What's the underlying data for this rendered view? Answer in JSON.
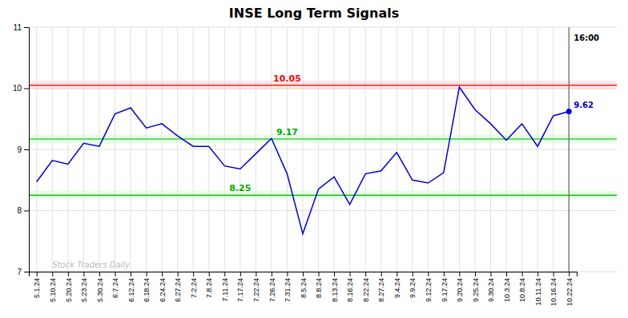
{
  "chart_data": {
    "type": "line",
    "title": "INSE Long Term Signals",
    "categories": [
      "5.1.24",
      "5.10.24",
      "5.20.24",
      "5.23.24",
      "5.30.24",
      "6.7.24",
      "6.12.24",
      "6.18.24",
      "6.24.24",
      "6.27.24",
      "7.2.24",
      "7.8.24",
      "7.11.24",
      "7.17.24",
      "7.22.24",
      "7.26.24",
      "7.31.24",
      "8.5.24",
      "8.8.24",
      "8.13.24",
      "8.16.24",
      "8.22.24",
      "8.27.24",
      "9.4.24",
      "9.9.24",
      "9.12.24",
      "9.17.24",
      "9.20.24",
      "9.25.24",
      "9.30.24",
      "10.3.24",
      "10.8.24",
      "10.11.24",
      "10.16.24",
      "10.22.24"
    ],
    "values": [
      8.47,
      8.82,
      8.76,
      9.1,
      9.05,
      9.58,
      9.68,
      9.35,
      9.42,
      9.22,
      9.05,
      9.05,
      8.73,
      8.68,
      8.93,
      9.18,
      8.6,
      7.62,
      8.35,
      8.55,
      8.1,
      8.6,
      8.65,
      8.95,
      8.5,
      8.45,
      8.62,
      10.02,
      9.65,
      9.42,
      9.15,
      9.42,
      9.05,
      9.55,
      9.62
    ],
    "color": "#0000cc",
    "ylim": [
      7,
      11
    ],
    "yticks": [
      7,
      8,
      9,
      10,
      11
    ],
    "grid": true,
    "reference_lines": [
      {
        "value": 10.05,
        "color": "#ff0000",
        "band_half_width": 0.07,
        "band_color": "#ffcccc"
      },
      {
        "value": 9.17,
        "color": "#00aa00",
        "band_half_width": 0.07,
        "band_color": "#ccffcc"
      },
      {
        "value": 8.25,
        "color": "#00aa00",
        "band_half_width": 0.07,
        "band_color": "#ccffcc"
      }
    ],
    "annotations": [
      {
        "text": "Stock Traders Daily",
        "color": "#bbbbbb"
      },
      {
        "text": "16:00"
      }
    ]
  }
}
